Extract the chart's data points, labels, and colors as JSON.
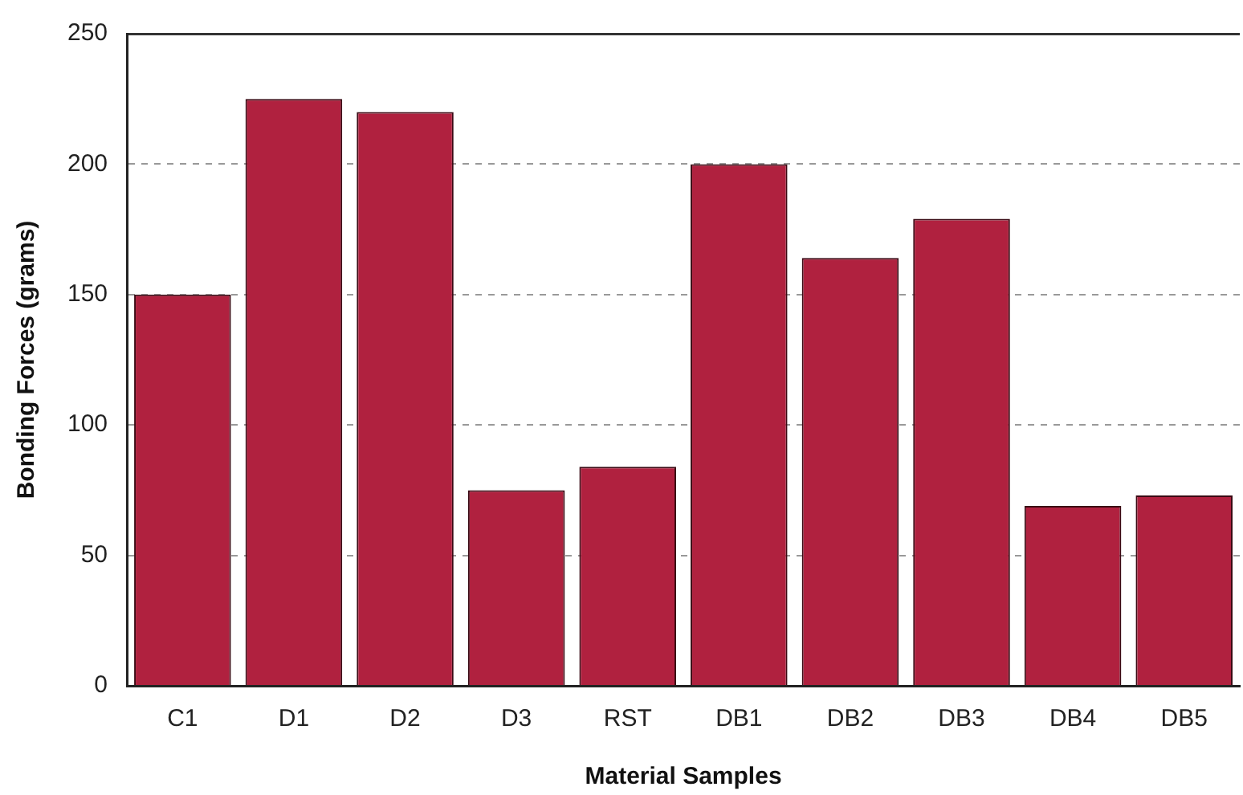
{
  "chart_data": {
    "type": "bar",
    "xlabel": "Material Samples",
    "ylabel": "Bonding Forces (grams)",
    "categories": [
      "C1",
      "D1",
      "D2",
      "D3",
      "RST",
      "DB1",
      "DB2",
      "DB3",
      "DB4",
      "DB5"
    ],
    "values": [
      150,
      225,
      220,
      75,
      84,
      200,
      164,
      179,
      69,
      73
    ],
    "color": "#b0213f",
    "ylim": [
      0,
      250
    ],
    "yticks": [
      0,
      50,
      100,
      150,
      200,
      250
    ],
    "grid": "y",
    "legend": false
  }
}
